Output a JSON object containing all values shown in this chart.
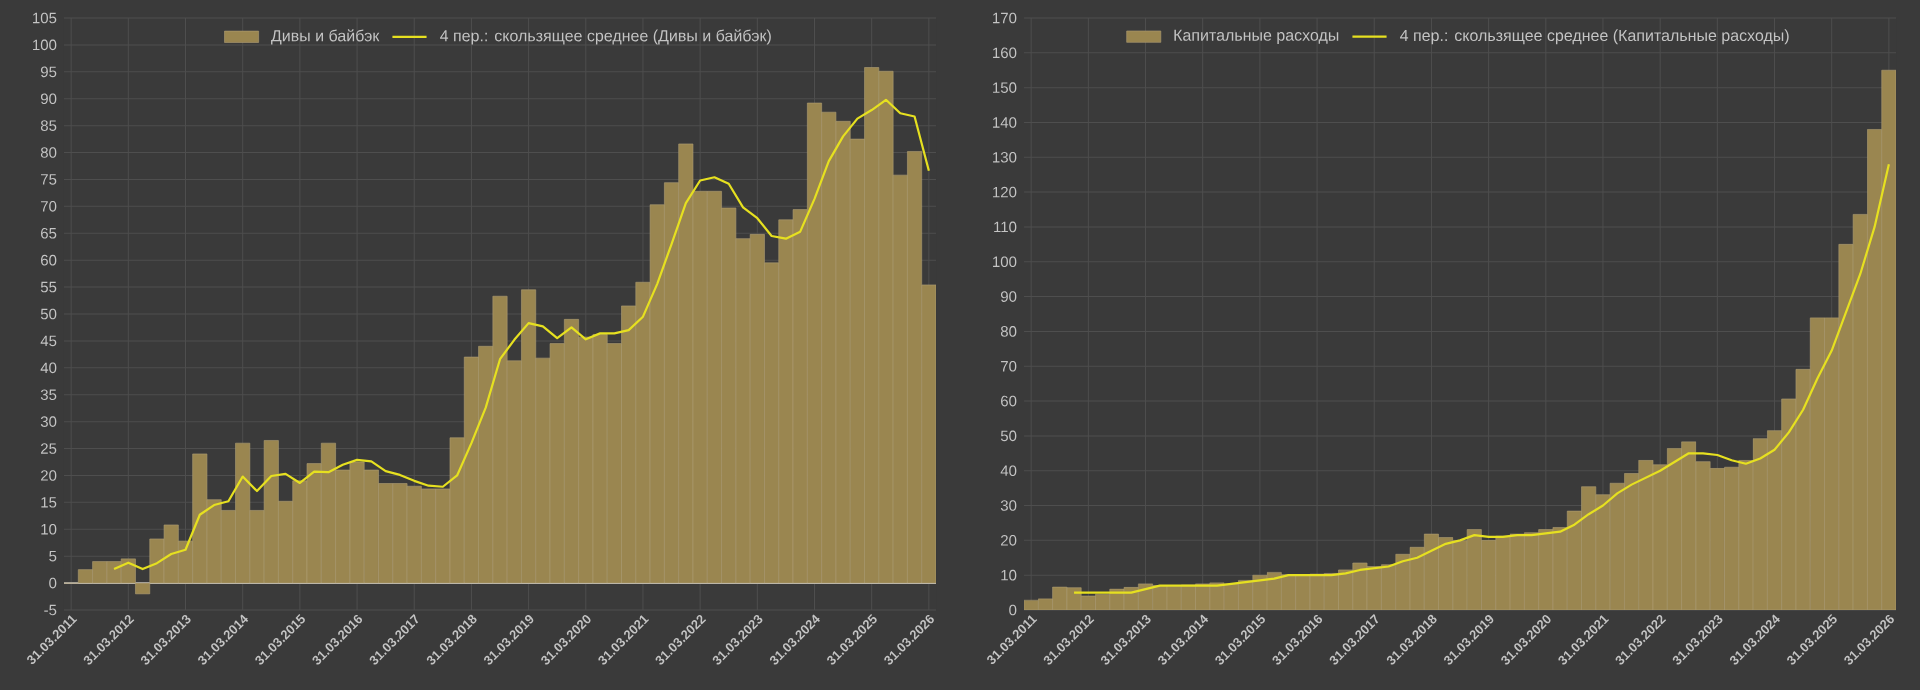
{
  "chart_data": [
    {
      "type": "bar",
      "categories": [
        "31.03.2011",
        null,
        null,
        null,
        "31.03.2012",
        null,
        null,
        null,
        "31.03.2013",
        null,
        null,
        null,
        "31.03.2014",
        null,
        null,
        null,
        "31.03.2015",
        null,
        null,
        null,
        "31.03.2016",
        null,
        null,
        null,
        "31.03.2017",
        null,
        null,
        null,
        "31.03.2018",
        null,
        null,
        null,
        "31.03.2019",
        null,
        null,
        null,
        "31.03.2020",
        null,
        null,
        null,
        "31.03.2021",
        null,
        null,
        null,
        "31.03.2022",
        null,
        null,
        null,
        "31.03.2023",
        null,
        null,
        null,
        "31.03.2024",
        null,
        null,
        null,
        "31.03.2025",
        null,
        null,
        null,
        "31.03.2026"
      ],
      "series": [
        {
          "name": "Дивы и байбэк",
          "color": "#9a8650",
          "values": [
            0,
            2.5,
            4,
            4,
            4.5,
            -2,
            8.2,
            10.8,
            7.8,
            24,
            15.5,
            13.5,
            26,
            13.5,
            26.5,
            15.2,
            19,
            22.2,
            26,
            21,
            22.5,
            21,
            18.5,
            18.5,
            18,
            17.5,
            17.5,
            27,
            42,
            44,
            53.3,
            41.3,
            54.5,
            41.8,
            44.5,
            49,
            45.7,
            46.2,
            44.5,
            51.5,
            55.9,
            70.3,
            74.4,
            81.6,
            72.8,
            72.8,
            69.7,
            64,
            64.8,
            59.5,
            67.5,
            69.4,
            89.2,
            87.5,
            85.8,
            82.5,
            95.8,
            95.1,
            75.8,
            80.2,
            55.4
          ]
        },
        {
          "name": "4 пер.: скользящее среднее (Дивы и байбэк)",
          "type": "line",
          "color": "#e6e020",
          "values": [
            null,
            null,
            null,
            2.6,
            3.8,
            2.6,
            3.7,
            5.4,
            6.2,
            12.7,
            14.5,
            15.2,
            19.8,
            17.1,
            19.9,
            20.3,
            18.6,
            20.7,
            20.6,
            22,
            22.9,
            22.6,
            20.8,
            20.1,
            19,
            18.1,
            17.9,
            20,
            26,
            32.6,
            41.6,
            45.2,
            48.3,
            47.7,
            45.5,
            47.5,
            45.3,
            46.4,
            46.4,
            47,
            49.5,
            55.6,
            63,
            70.6,
            74.8,
            75.4,
            74.2,
            69.8,
            67.8,
            64.5,
            64,
            65.3,
            71.4,
            78.4,
            83,
            86.3,
            87.9,
            89.8,
            87.3,
            86.7,
            76.6
          ]
        }
      ],
      "ylim": [
        -5,
        105
      ],
      "yticks": [
        -5,
        0,
        5,
        10,
        15,
        20,
        25,
        30,
        35,
        40,
        45,
        50,
        55,
        60,
        65,
        70,
        75,
        80,
        85,
        90,
        95,
        100,
        105
      ],
      "grid": true,
      "legend": "top"
    },
    {
      "type": "bar",
      "categories": [
        "31.03.2011",
        null,
        null,
        null,
        "31.03.2012",
        null,
        null,
        null,
        "31.03.2013",
        null,
        null,
        null,
        "31.03.2014",
        null,
        null,
        null,
        "31.03.2015",
        null,
        null,
        null,
        "31.03.2016",
        null,
        null,
        null,
        "31.03.2017",
        null,
        null,
        null,
        "31.03.2018",
        null,
        null,
        null,
        "31.03.2019",
        null,
        null,
        null,
        "31.03.2020",
        null,
        null,
        null,
        "31.03.2021",
        null,
        null,
        null,
        "31.03.2022",
        null,
        null,
        null,
        "31.03.2023",
        null,
        null,
        null,
        "31.03.2024",
        null,
        null,
        null,
        "31.03.2025",
        null,
        null,
        null,
        "31.03.2026"
      ],
      "series": [
        {
          "name": "Капитальные расходы",
          "color": "#9a8650",
          "values": [
            2.8,
            3.2,
            6.6,
            6.4,
            4,
            4.5,
            6,
            6.5,
            7.5,
            7,
            6.8,
            7.2,
            7.5,
            7.8,
            7.5,
            8.5,
            10,
            10.8,
            10.2,
            10,
            10.3,
            10.5,
            11.5,
            13.5,
            12.5,
            13,
            16,
            18,
            21.8,
            20.8,
            19.9,
            23.1,
            20,
            21.2,
            21.8,
            22.2,
            23.1,
            23.7,
            28.4,
            35.4,
            33.1,
            36.4,
            39.2,
            43,
            41.7,
            46.4,
            48.3,
            42.6,
            40.7,
            41,
            43,
            49.2,
            51.5,
            60.6,
            69.1,
            83.9,
            83.9,
            105,
            113.6,
            138,
            155
          ]
        },
        {
          "name": "4 пер.: скользящее среднее (Капитальные расходы)",
          "type": "line",
          "color": "#e6e020",
          "values": [
            null,
            null,
            null,
            5,
            5,
            5,
            5,
            5,
            6,
            7,
            7,
            7,
            7,
            7,
            7.5,
            8,
            8.5,
            9,
            10,
            10,
            10,
            10,
            10.5,
            11.5,
            12,
            12.5,
            14,
            15,
            17,
            19,
            20,
            21.5,
            21,
            21,
            21.5,
            21.5,
            22,
            22.5,
            24.5,
            27.5,
            30,
            33.5,
            36,
            38,
            40,
            42.5,
            45,
            45,
            44.5,
            43,
            42,
            43.5,
            46,
            51,
            57.5,
            66.5,
            74.5,
            85.5,
            96.5,
            110,
            128
          ]
        }
      ],
      "ylim": [
        0,
        170
      ],
      "yticks": [
        0,
        10,
        20,
        30,
        40,
        50,
        60,
        70,
        80,
        90,
        100,
        110,
        120,
        130,
        140,
        150,
        160,
        170
      ],
      "grid": true,
      "legend": "top"
    }
  ]
}
